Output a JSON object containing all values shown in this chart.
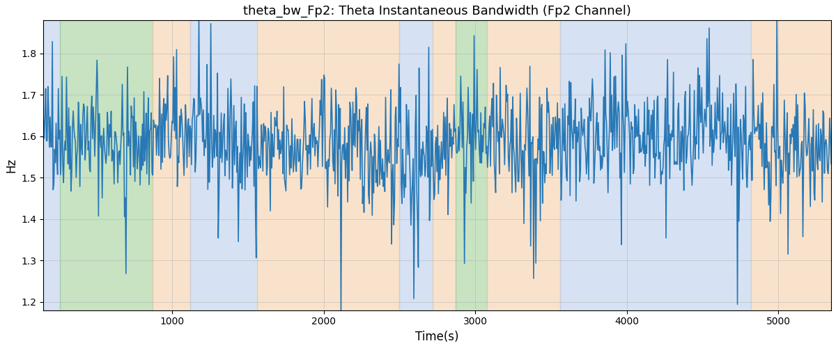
{
  "title": "theta_bw_Fp2: Theta Instantaneous Bandwidth (Fp2 Channel)",
  "xlabel": "Time(s)",
  "ylabel": "Hz",
  "ylim": [
    1.18,
    1.88
  ],
  "xlim": [
    150,
    5350
  ],
  "line_color": "#2878b5",
  "line_width": 1.2,
  "bg_bands": [
    {
      "xmin": 150,
      "xmax": 260,
      "color": "#aec6e8",
      "alpha": 0.5
    },
    {
      "xmin": 260,
      "xmax": 870,
      "color": "#90c987",
      "alpha": 0.5
    },
    {
      "xmin": 870,
      "xmax": 1120,
      "color": "#f5c799",
      "alpha": 0.5
    },
    {
      "xmin": 1120,
      "xmax": 1560,
      "color": "#aec6e8",
      "alpha": 0.5
    },
    {
      "xmin": 1560,
      "xmax": 2500,
      "color": "#f5c799",
      "alpha": 0.5
    },
    {
      "xmin": 2500,
      "xmax": 2720,
      "color": "#aec6e8",
      "alpha": 0.5
    },
    {
      "xmin": 2720,
      "xmax": 2870,
      "color": "#f5c799",
      "alpha": 0.5
    },
    {
      "xmin": 2870,
      "xmax": 3080,
      "color": "#90c987",
      "alpha": 0.5
    },
    {
      "xmin": 3080,
      "xmax": 3560,
      "color": "#f5c799",
      "alpha": 0.5
    },
    {
      "xmin": 3560,
      "xmax": 4820,
      "color": "#aec6e8",
      "alpha": 0.5
    },
    {
      "xmin": 4820,
      "xmax": 5350,
      "color": "#f5c799",
      "alpha": 0.5
    }
  ],
  "grid_color": "#b0b0b0",
  "grid_alpha": 0.7,
  "title_fontsize": 13,
  "seed": 42,
  "n_points": 1060,
  "t_start": 150,
  "t_end": 5350,
  "base_mean": 1.585,
  "base_std": 0.072
}
